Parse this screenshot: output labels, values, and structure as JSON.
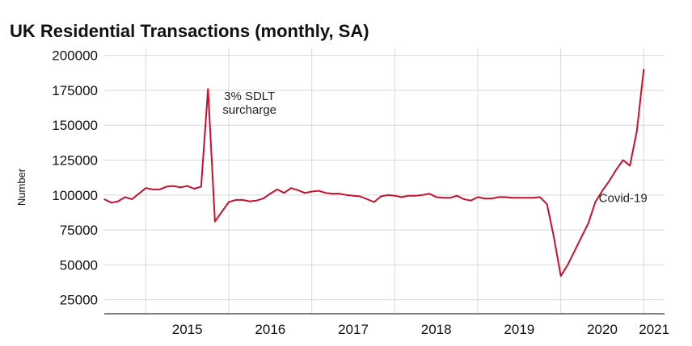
{
  "chart_data": {
    "type": "line",
    "title": "UK Residential Transactions (monthly, SA)",
    "ylabel": "Number",
    "xlabel": "",
    "ylim": [
      15000,
      205000
    ],
    "xlim": [
      "2014-07",
      "2021-04"
    ],
    "y_ticks": [
      "200000",
      "175000",
      "150000",
      "125000",
      "100000",
      "75000",
      "50000",
      "25000"
    ],
    "x_ticks": [
      "2015",
      "2016",
      "2017",
      "2018",
      "2019",
      "2020",
      "2021"
    ],
    "grid": true,
    "series": [
      {
        "color": "#c8102e",
        "points": [
          [
            "2014-07",
            97000
          ],
          [
            "2014-08",
            94500
          ],
          [
            "2014-09",
            95500
          ],
          [
            "2014-10",
            98500
          ],
          [
            "2014-11",
            97000
          ],
          [
            "2014-12",
            101000
          ],
          [
            "2015-01",
            105000
          ],
          [
            "2015-02",
            104000
          ],
          [
            "2015-03",
            104000
          ],
          [
            "2015-04",
            106000
          ],
          [
            "2015-05",
            106500
          ],
          [
            "2015-06",
            105500
          ],
          [
            "2015-07",
            106500
          ],
          [
            "2015-08",
            104500
          ],
          [
            "2015-09",
            106000
          ],
          [
            "2015-10",
            176000
          ],
          [
            "2015-11",
            81000
          ],
          [
            "2015-12",
            88000
          ],
          [
            "2016-01",
            95000
          ],
          [
            "2016-02",
            96500
          ],
          [
            "2016-03",
            96500
          ],
          [
            "2016-04",
            95500
          ],
          [
            "2016-05",
            96000
          ],
          [
            "2016-06",
            97500
          ],
          [
            "2016-07",
            101000
          ],
          [
            "2016-08",
            104000
          ],
          [
            "2016-09",
            101500
          ],
          [
            "2016-10",
            105000
          ],
          [
            "2016-11",
            103500
          ],
          [
            "2016-12",
            101500
          ],
          [
            "2017-01",
            102500
          ],
          [
            "2017-02",
            103000
          ],
          [
            "2017-03",
            101500
          ],
          [
            "2017-04",
            101000
          ],
          [
            "2017-05",
            101000
          ],
          [
            "2017-06",
            100000
          ],
          [
            "2017-07",
            99500
          ],
          [
            "2017-08",
            99000
          ],
          [
            "2017-09",
            97000
          ],
          [
            "2017-10",
            95000
          ],
          [
            "2017-11",
            99000
          ],
          [
            "2017-12",
            100000
          ],
          [
            "2018-01",
            99500
          ],
          [
            "2018-02",
            98500
          ],
          [
            "2018-03",
            99500
          ],
          [
            "2018-04",
            99500
          ],
          [
            "2018-05",
            100000
          ],
          [
            "2018-06",
            101000
          ],
          [
            "2018-07",
            98500
          ],
          [
            "2018-08",
            98000
          ],
          [
            "2018-09",
            98000
          ],
          [
            "2018-10",
            99500
          ],
          [
            "2018-11",
            97000
          ],
          [
            "2018-12",
            96000
          ],
          [
            "2019-01",
            98500
          ],
          [
            "2019-02",
            97500
          ],
          [
            "2019-03",
            97500
          ],
          [
            "2019-04",
            98500
          ],
          [
            "2019-05",
            98500
          ],
          [
            "2019-06",
            98000
          ],
          [
            "2019-07",
            98000
          ],
          [
            "2019-08",
            98000
          ],
          [
            "2019-09",
            98000
          ],
          [
            "2019-10",
            98500
          ],
          [
            "2019-11",
            93500
          ],
          [
            "2019-12",
            70000
          ],
          [
            "2020-01",
            42000
          ],
          [
            "2020-02",
            50000
          ],
          [
            "2020-03",
            60000
          ],
          [
            "2020-04",
            70000
          ],
          [
            "2020-05",
            80000
          ],
          [
            "2020-06",
            95000
          ],
          [
            "2020-07",
            103000
          ],
          [
            "2020-08",
            110000
          ],
          [
            "2020-09",
            118000
          ],
          [
            "2020-10",
            125000
          ],
          [
            "2020-11",
            121000
          ],
          [
            "2020-12",
            146000
          ],
          [
            "2021-01",
            190000
          ]
        ]
      }
    ],
    "annotations": [
      {
        "text_lines": [
          "3% SDLT",
          "surcharge"
        ],
        "date": "2016-04"
      },
      {
        "text_lines": [
          "Covid-19"
        ],
        "date": "2020-10"
      }
    ]
  }
}
